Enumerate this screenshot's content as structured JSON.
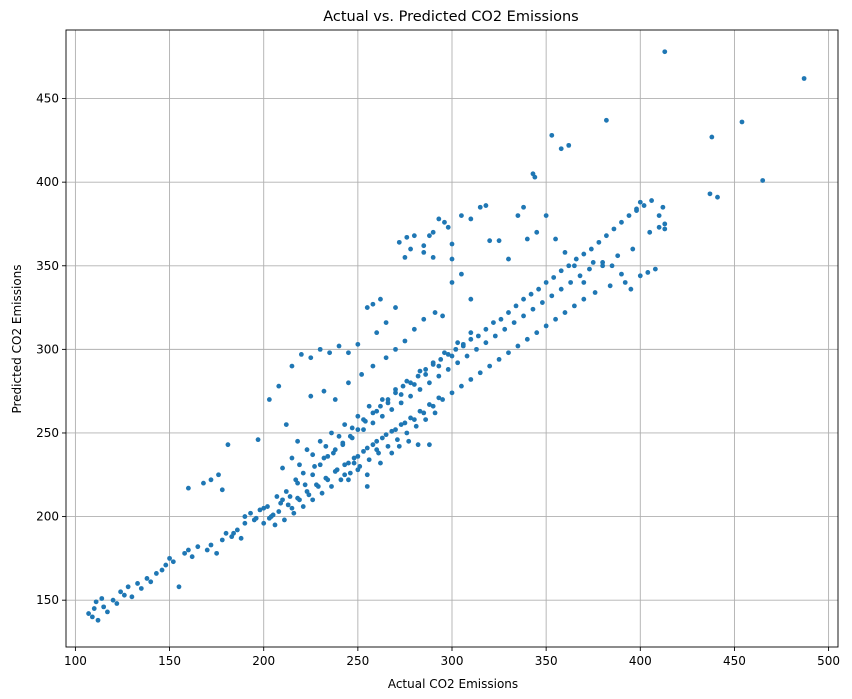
{
  "chart_data": {
    "type": "scatter",
    "title": "Actual vs. Predicted CO2 Emissions",
    "xlabel": "Actual CO2 Emissions",
    "ylabel": "Predicted CO2 Emissions",
    "xlim": [
      95,
      505
    ],
    "ylim": [
      122,
      491
    ],
    "xticks": [
      100,
      150,
      200,
      250,
      300,
      350,
      400,
      450,
      500
    ],
    "yticks": [
      150,
      200,
      250,
      300,
      350,
      400,
      450
    ],
    "grid": true,
    "color": "#1f77b4",
    "points": [
      [
        107,
        142
      ],
      [
        109,
        140
      ],
      [
        110,
        145
      ],
      [
        111,
        149
      ],
      [
        112,
        138
      ],
      [
        114,
        151
      ],
      [
        115,
        146
      ],
      [
        117,
        143
      ],
      [
        120,
        150
      ],
      [
        122,
        148
      ],
      [
        124,
        155
      ],
      [
        126,
        153
      ],
      [
        128,
        158
      ],
      [
        130,
        152
      ],
      [
        133,
        160
      ],
      [
        135,
        157
      ],
      [
        138,
        163
      ],
      [
        140,
        161
      ],
      [
        143,
        166
      ],
      [
        146,
        168
      ],
      [
        148,
        171
      ],
      [
        150,
        175
      ],
      [
        152,
        173
      ],
      [
        155,
        158
      ],
      [
        158,
        178
      ],
      [
        160,
        180
      ],
      [
        162,
        176
      ],
      [
        165,
        182
      ],
      [
        168,
        220
      ],
      [
        172,
        222
      ],
      [
        176,
        225
      ],
      [
        178,
        216
      ],
      [
        160,
        217
      ],
      [
        181,
        243
      ],
      [
        197,
        246
      ],
      [
        184,
        190
      ],
      [
        190,
        196
      ],
      [
        195,
        198
      ],
      [
        200,
        205
      ],
      [
        205,
        201
      ],
      [
        210,
        210
      ],
      [
        214,
        212
      ],
      [
        218,
        220
      ],
      [
        222,
        219
      ],
      [
        226,
        225
      ],
      [
        230,
        231
      ],
      [
        234,
        236
      ],
      [
        238,
        240
      ],
      [
        242,
        244
      ],
      [
        246,
        248
      ],
      [
        250,
        252
      ],
      [
        254,
        257
      ],
      [
        258,
        262
      ],
      [
        262,
        266
      ],
      [
        266,
        270
      ],
      [
        270,
        274
      ],
      [
        274,
        278
      ],
      [
        278,
        280
      ],
      [
        282,
        284
      ],
      [
        286,
        288
      ],
      [
        290,
        291
      ],
      [
        294,
        294
      ],
      [
        298,
        297
      ],
      [
        302,
        300
      ],
      [
        306,
        303
      ],
      [
        310,
        306
      ],
      [
        314,
        308
      ],
      [
        318,
        312
      ],
      [
        322,
        316
      ],
      [
        326,
        318
      ],
      [
        330,
        322
      ],
      [
        334,
        326
      ],
      [
        338,
        330
      ],
      [
        342,
        333
      ],
      [
        346,
        336
      ],
      [
        350,
        340
      ],
      [
        354,
        343
      ],
      [
        358,
        347
      ],
      [
        362,
        350
      ],
      [
        366,
        354
      ],
      [
        370,
        357
      ],
      [
        374,
        360
      ],
      [
        378,
        364
      ],
      [
        382,
        368
      ],
      [
        386,
        372
      ],
      [
        390,
        376
      ],
      [
        394,
        380
      ],
      [
        398,
        384
      ],
      [
        402,
        386
      ],
      [
        406,
        389
      ],
      [
        410,
        373
      ],
      [
        413,
        375
      ],
      [
        170,
        180
      ],
      [
        172,
        183
      ],
      [
        175,
        178
      ],
      [
        178,
        186
      ],
      [
        180,
        190
      ],
      [
        183,
        188
      ],
      [
        186,
        192
      ],
      [
        188,
        187
      ],
      [
        190,
        200
      ],
      [
        193,
        202
      ],
      [
        196,
        199
      ],
      [
        198,
        204
      ],
      [
        202,
        206
      ],
      [
        204,
        200
      ],
      [
        207,
        212
      ],
      [
        209,
        208
      ],
      [
        212,
        215
      ],
      [
        215,
        205
      ],
      [
        217,
        222
      ],
      [
        219,
        210
      ],
      [
        221,
        226
      ],
      [
        224,
        213
      ],
      [
        227,
        230
      ],
      [
        229,
        218
      ],
      [
        232,
        235
      ],
      [
        234,
        222
      ],
      [
        237,
        238
      ],
      [
        239,
        228
      ],
      [
        242,
        243
      ],
      [
        245,
        232
      ],
      [
        247,
        247
      ],
      [
        250,
        236
      ],
      [
        253,
        252
      ],
      [
        255,
        241
      ],
      [
        258,
        256
      ],
      [
        260,
        245
      ],
      [
        263,
        260
      ],
      [
        265,
        249
      ],
      [
        268,
        264
      ],
      [
        270,
        252
      ],
      [
        273,
        268
      ],
      [
        275,
        256
      ],
      [
        278,
        272
      ],
      [
        280,
        258
      ],
      [
        283,
        276
      ],
      [
        285,
        262
      ],
      [
        288,
        280
      ],
      [
        290,
        266
      ],
      [
        293,
        284
      ],
      [
        295,
        270
      ],
      [
        298,
        288
      ],
      [
        300,
        274
      ],
      [
        303,
        292
      ],
      [
        305,
        278
      ],
      [
        308,
        296
      ],
      [
        310,
        282
      ],
      [
        313,
        300
      ],
      [
        315,
        286
      ],
      [
        318,
        304
      ],
      [
        320,
        290
      ],
      [
        323,
        308
      ],
      [
        325,
        294
      ],
      [
        328,
        312
      ],
      [
        330,
        298
      ],
      [
        333,
        316
      ],
      [
        335,
        302
      ],
      [
        338,
        320
      ],
      [
        340,
        306
      ],
      [
        343,
        324
      ],
      [
        345,
        310
      ],
      [
        348,
        328
      ],
      [
        350,
        314
      ],
      [
        353,
        332
      ],
      [
        355,
        318
      ],
      [
        358,
        336
      ],
      [
        360,
        322
      ],
      [
        363,
        340
      ],
      [
        365,
        326
      ],
      [
        368,
        344
      ],
      [
        370,
        330
      ],
      [
        373,
        348
      ],
      [
        376,
        334
      ],
      [
        380,
        352
      ],
      [
        384,
        338
      ],
      [
        388,
        356
      ],
      [
        392,
        340
      ],
      [
        396,
        360
      ],
      [
        400,
        344
      ],
      [
        404,
        346
      ],
      [
        408,
        348
      ],
      [
        210,
        229
      ],
      [
        215,
        235
      ],
      [
        219,
        231
      ],
      [
        223,
        240
      ],
      [
        226,
        237
      ],
      [
        230,
        245
      ],
      [
        233,
        242
      ],
      [
        236,
        250
      ],
      [
        240,
        248
      ],
      [
        243,
        255
      ],
      [
        247,
        253
      ],
      [
        250,
        260
      ],
      [
        253,
        258
      ],
      [
        256,
        266
      ],
      [
        260,
        263
      ],
      [
        263,
        270
      ],
      [
        266,
        268
      ],
      [
        270,
        276
      ],
      [
        273,
        273
      ],
      [
        276,
        281
      ],
      [
        280,
        279
      ],
      [
        283,
        287
      ],
      [
        286,
        285
      ],
      [
        290,
        292
      ],
      [
        293,
        290
      ],
      [
        296,
        298
      ],
      [
        300,
        296
      ],
      [
        303,
        304
      ],
      [
        306,
        302
      ],
      [
        310,
        310
      ],
      [
        200,
        196
      ],
      [
        203,
        199
      ],
      [
        206,
        195
      ],
      [
        208,
        203
      ],
      [
        211,
        198
      ],
      [
        213,
        207
      ],
      [
        216,
        202
      ],
      [
        218,
        211
      ],
      [
        221,
        206
      ],
      [
        223,
        215
      ],
      [
        226,
        210
      ],
      [
        228,
        219
      ],
      [
        231,
        214
      ],
      [
        233,
        223
      ],
      [
        236,
        218
      ],
      [
        238,
        227
      ],
      [
        241,
        222
      ],
      [
        243,
        231
      ],
      [
        246,
        226
      ],
      [
        248,
        235
      ],
      [
        251,
        230
      ],
      [
        253,
        239
      ],
      [
        256,
        234
      ],
      [
        258,
        243
      ],
      [
        261,
        238
      ],
      [
        263,
        247
      ],
      [
        266,
        242
      ],
      [
        268,
        251
      ],
      [
        271,
        246
      ],
      [
        273,
        255
      ],
      [
        276,
        250
      ],
      [
        278,
        259
      ],
      [
        281,
        254
      ],
      [
        283,
        263
      ],
      [
        286,
        258
      ],
      [
        288,
        267
      ],
      [
        291,
        262
      ],
      [
        293,
        271
      ],
      [
        245,
        222
      ],
      [
        250,
        228
      ],
      [
        255,
        218
      ],
      [
        262,
        232
      ],
      [
        268,
        238
      ],
      [
        272,
        242
      ],
      [
        277,
        245
      ],
      [
        282,
        243
      ],
      [
        288,
        243
      ],
      [
        255,
        225
      ],
      [
        260,
        240
      ],
      [
        243,
        225
      ],
      [
        248,
        232
      ],
      [
        203,
        270
      ],
      [
        208,
        278
      ],
      [
        215,
        290
      ],
      [
        220,
        297
      ],
      [
        225,
        295
      ],
      [
        230,
        300
      ],
      [
        235,
        298
      ],
      [
        240,
        302
      ],
      [
        245,
        298
      ],
      [
        250,
        303
      ],
      [
        212,
        255
      ],
      [
        218,
        245
      ],
      [
        225,
        272
      ],
      [
        232,
        275
      ],
      [
        238,
        270
      ],
      [
        245,
        280
      ],
      [
        252,
        285
      ],
      [
        258,
        290
      ],
      [
        265,
        295
      ],
      [
        270,
        300
      ],
      [
        275,
        305
      ],
      [
        280,
        312
      ],
      [
        285,
        318
      ],
      [
        291,
        322
      ],
      [
        260,
        310
      ],
      [
        265,
        316
      ],
      [
        270,
        325
      ],
      [
        255,
        325
      ],
      [
        258,
        327
      ],
      [
        262,
        330
      ],
      [
        272,
        364
      ],
      [
        276,
        367
      ],
      [
        280,
        368
      ],
      [
        285,
        362
      ],
      [
        288,
        368
      ],
      [
        290,
        370
      ],
      [
        293,
        378
      ],
      [
        296,
        376
      ],
      [
        298,
        373
      ],
      [
        300,
        363
      ],
      [
        305,
        380
      ],
      [
        310,
        378
      ],
      [
        315,
        385
      ],
      [
        318,
        386
      ],
      [
        320,
        365
      ],
      [
        325,
        365
      ],
      [
        330,
        354
      ],
      [
        300,
        354
      ],
      [
        290,
        355
      ],
      [
        285,
        358
      ],
      [
        278,
        360
      ],
      [
        275,
        355
      ],
      [
        340,
        366
      ],
      [
        345,
        370
      ],
      [
        350,
        380
      ],
      [
        355,
        366
      ],
      [
        360,
        358
      ],
      [
        365,
        350
      ],
      [
        370,
        340
      ],
      [
        375,
        352
      ],
      [
        380,
        350
      ],
      [
        385,
        350
      ],
      [
        390,
        345
      ],
      [
        395,
        336
      ],
      [
        300,
        340
      ],
      [
        305,
        345
      ],
      [
        310,
        330
      ],
      [
        295,
        320
      ],
      [
        335,
        380
      ],
      [
        338,
        385
      ],
      [
        343,
        405
      ],
      [
        344,
        403
      ],
      [
        353,
        428
      ],
      [
        358,
        420
      ],
      [
        362,
        422
      ],
      [
        382,
        437
      ],
      [
        398,
        383
      ],
      [
        400,
        388
      ],
      [
        405,
        370
      ],
      [
        410,
        380
      ],
      [
        412,
        385
      ],
      [
        413,
        372
      ],
      [
        437,
        393
      ],
      [
        438,
        427
      ],
      [
        441,
        391
      ],
      [
        454,
        436
      ],
      [
        465,
        401
      ],
      [
        487,
        462
      ],
      [
        413,
        478
      ]
    ]
  }
}
